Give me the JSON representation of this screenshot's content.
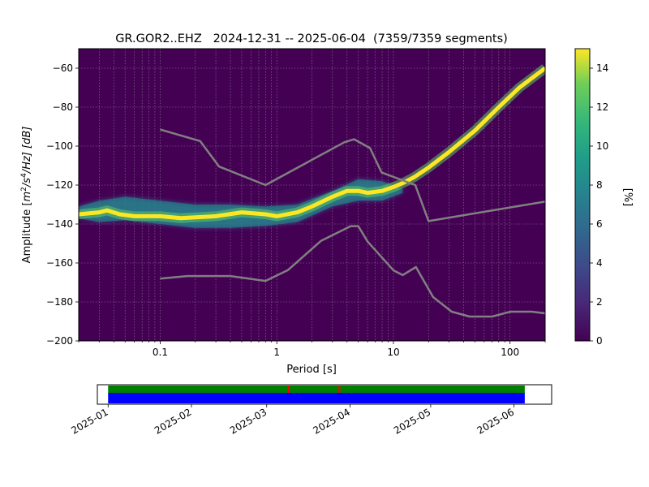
{
  "chart_data": [
    {
      "type": "heatmap",
      "title": "GR.GOR2..EHZ   2024-12-31 -- 2025-06-04  (7359/7359 segments)",
      "xlabel": "Period [s]",
      "ylabel": "Amplitude [m²/s⁴/Hz] [dB]",
      "ylabel_parts": {
        "prefix": "Amplitude [",
        "m": "m",
        "m_exp": "2",
        "s": "/s",
        "s_exp": "4",
        "suffix": "/Hz] [dB]"
      },
      "x_scale": "log",
      "xlim": [
        0.02,
        200
      ],
      "ylim": [
        -200,
        -50
      ],
      "x_ticks": [
        {
          "value": 0.1,
          "label": "0.1"
        },
        {
          "value": 1,
          "label": "1"
        },
        {
          "value": 10,
          "label": "10"
        },
        {
          "value": 100,
          "label": "100"
        }
      ],
      "y_ticks": [
        {
          "value": -200,
          "label": "−200"
        },
        {
          "value": -180,
          "label": "−180"
        },
        {
          "value": -160,
          "label": "−160"
        },
        {
          "value": -140,
          "label": "−140"
        },
        {
          "value": -120,
          "label": "−120"
        },
        {
          "value": -100,
          "label": "−100"
        },
        {
          "value": -80,
          "label": "−80"
        },
        {
          "value": -60,
          "label": "−60"
        }
      ],
      "grid": true,
      "background_color": "#440154",
      "colormap": "viridis",
      "colorbar": {
        "label": "[%]",
        "range": [
          0,
          15
        ],
        "ticks": [
          {
            "value": 0,
            "label": "0"
          },
          {
            "value": 2,
            "label": "2"
          },
          {
            "value": 4,
            "label": "4"
          },
          {
            "value": 6,
            "label": "6"
          },
          {
            "value": 8,
            "label": "8"
          },
          {
            "value": 10,
            "label": "10"
          },
          {
            "value": 12,
            "label": "12"
          },
          {
            "value": 14,
            "label": "14"
          }
        ]
      },
      "mode_curve": {
        "period": [
          0.02,
          0.03,
          0.035,
          0.045,
          0.06,
          0.1,
          0.15,
          0.3,
          0.5,
          0.8,
          1,
          1.5,
          2,
          3,
          4,
          5,
          6,
          8,
          10,
          12,
          15,
          20,
          30,
          50,
          80,
          120,
          200
        ],
        "db": [
          -135,
          -134,
          -133,
          -135,
          -136,
          -136,
          -137,
          -136,
          -134,
          -135,
          -136,
          -134,
          -131,
          -126,
          -123,
          -123,
          -124,
          -123,
          -121,
          -119,
          -116,
          -111,
          -103,
          -92,
          -80,
          -70,
          -60
        ]
      },
      "spread_band": {
        "period": [
          0.02,
          0.03,
          0.05,
          0.1,
          0.2,
          0.4,
          0.8,
          1.5,
          3,
          5,
          8,
          12
        ],
        "upper_db": [
          -131,
          -128,
          -126,
          -128,
          -130,
          -130,
          -131,
          -130,
          -123,
          -117,
          -118,
          -122
        ],
        "lower_db": [
          -137,
          -139,
          -138,
          -140,
          -142,
          -142,
          -141,
          -139,
          -131,
          -128,
          -128,
          -124
        ]
      },
      "series": [
        {
          "name": "NHNM",
          "period": [
            0.1,
            0.22,
            0.32,
            0.8,
            3.8,
            4.6,
            6.3,
            7.9,
            15.4,
            20,
            354.8
          ],
          "db": [
            -91.5,
            -97.4,
            -110.5,
            -120,
            -98,
            -96.5,
            -101,
            -113.5,
            -120,
            -138.5,
            -126
          ]
        },
        {
          "name": "NLNM",
          "period": [
            0.1,
            0.17,
            0.4,
            0.8,
            1.24,
            2.4,
            4.3,
            5,
            6,
            10,
            12,
            15.6,
            21.9,
            31.6,
            45,
            70,
            101,
            154,
            328
          ],
          "db": [
            -168,
            -166.7,
            -166.7,
            -169.2,
            -163.7,
            -148.6,
            -141.1,
            -141.1,
            -149,
            -163.8,
            -166.2,
            -162.1,
            -177.5,
            -185,
            -187.5,
            -187.5,
            -185,
            -185,
            -187.5
          ]
        }
      ],
      "line_color": "#808080"
    },
    {
      "type": "timeline",
      "x_ticks": [
        "2025-01",
        "2025-02",
        "2025-03",
        "2025-04",
        "2025-05",
        "2025-06"
      ],
      "xlim": [
        "2024-12-28",
        "2025-06-15"
      ],
      "coverage_start": "2025-01-01",
      "coverage_end": "2025-06-05",
      "marks": [
        "2025-03-09",
        "2025-03-28"
      ],
      "colors": {
        "upper": "#008000",
        "lower": "#0000ff",
        "mark": "#ff0000"
      }
    }
  ]
}
